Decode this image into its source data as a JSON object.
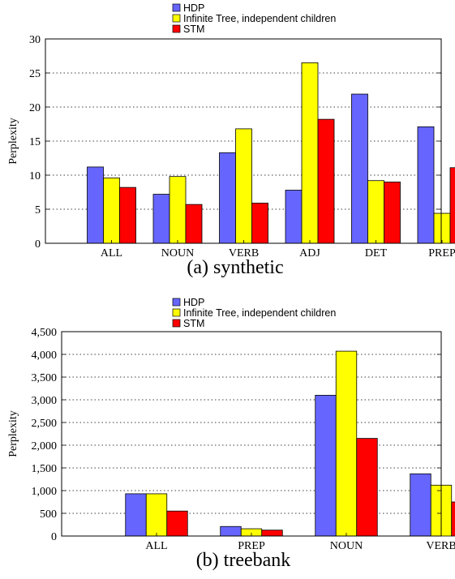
{
  "chart_data": [
    {
      "type": "bar",
      "ylabel": "Perplexity",
      "caption": "(a) synthetic",
      "ylim": [
        0,
        30
      ],
      "yticks": [
        0,
        5,
        10,
        15,
        20,
        25,
        30
      ],
      "ytick_labels": [
        "0",
        "5",
        "10",
        "15",
        "20",
        "25",
        "30"
      ],
      "grid": "horizontal dotted",
      "legend": "top-left, above plot",
      "categories": [
        "ALL",
        "NOUN",
        "VERB",
        "ADJ",
        "DET",
        "PREP"
      ],
      "series": [
        {
          "name": "HDP",
          "color": "#6666ff",
          "values": [
            11.2,
            7.2,
            13.3,
            7.8,
            21.9,
            17.1
          ]
        },
        {
          "name": "Infinite Tree, independent children",
          "color": "#ffff00",
          "values": [
            9.6,
            9.8,
            16.8,
            26.5,
            9.2,
            4.4
          ]
        },
        {
          "name": "STM",
          "color": "#ff0000",
          "values": [
            8.2,
            5.7,
            5.9,
            18.2,
            9.0,
            11.1
          ]
        }
      ]
    },
    {
      "type": "bar",
      "ylabel": "Perplexity",
      "caption": "(b) treebank",
      "ylim": [
        0,
        4500
      ],
      "yticks": [
        0,
        500,
        1000,
        1500,
        2000,
        2500,
        3000,
        3500,
        4000,
        4500
      ],
      "ytick_labels": [
        "0",
        "500",
        "1,000",
        "1,500",
        "2,000",
        "2,500",
        "3,000",
        "3,500",
        "4,000",
        "4,500"
      ],
      "grid": "horizontal dotted",
      "legend": "top-left, above plot",
      "categories": [
        "ALL",
        "PREP",
        "NOUN",
        "VERB"
      ],
      "series": [
        {
          "name": "HDP",
          "color": "#6666ff",
          "values": [
            930,
            210,
            3100,
            1370
          ]
        },
        {
          "name": "Infinite Tree, independent children",
          "color": "#ffff00",
          "values": [
            930,
            160,
            4070,
            1120
          ]
        },
        {
          "name": "STM",
          "color": "#ff0000",
          "values": [
            550,
            130,
            2150,
            750
          ]
        }
      ]
    }
  ]
}
